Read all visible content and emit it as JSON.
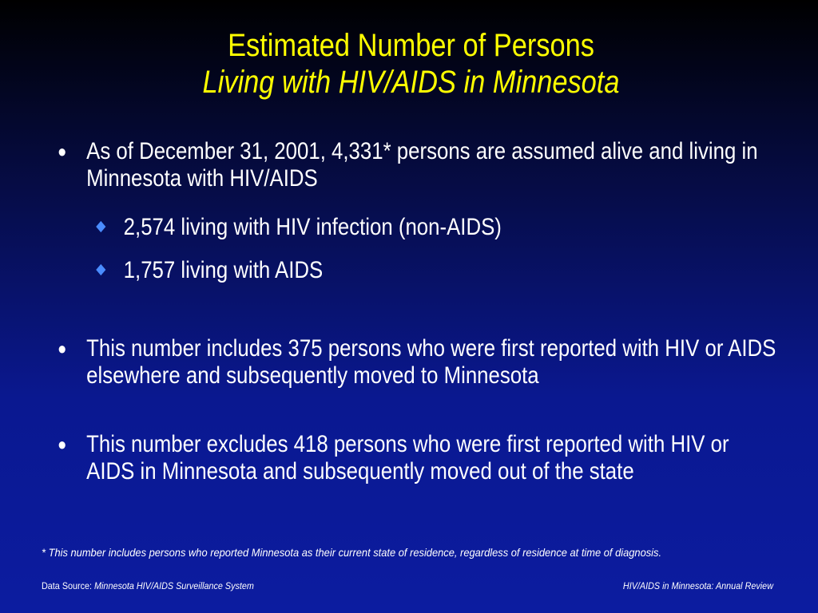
{
  "title": {
    "line1": "Estimated Number of Persons",
    "line2": "Living with HIV/AIDS in Minnesota"
  },
  "bullets": [
    {
      "marker": "●",
      "text": "As of December 31, 2001, 4,331* persons are assumed alive and living in Minnesota with HIV/AIDS",
      "sub_items": [
        "2,574 living with HIV infection (non-AIDS)",
        "1,757 living with AIDS"
      ]
    },
    {
      "marker": "●",
      "text": "This number includes 375 persons who were first reported with HIV or AIDS elsewhere and subsequently moved to Minnesota"
    },
    {
      "marker": "●",
      "text": "This number excludes 418 persons who were first reported with HIV or AIDS in Minnesota and subsequently moved out of the state"
    }
  ],
  "footnote": "* This number includes persons who reported Minnesota as their current state of residence, regardless of residence at time of diagnosis.",
  "footer": {
    "source_label": "Data Source: ",
    "source_value": "Minnesota HIV/AIDS Surveillance System",
    "review": "HIV/AIDS in Minnesota: Annual Review"
  },
  "colors": {
    "title": "#ffff00",
    "text": "#ffffff",
    "diamond": "#4a8cff",
    "background_top": "#000000",
    "background_bottom": "#0c1ca0"
  }
}
